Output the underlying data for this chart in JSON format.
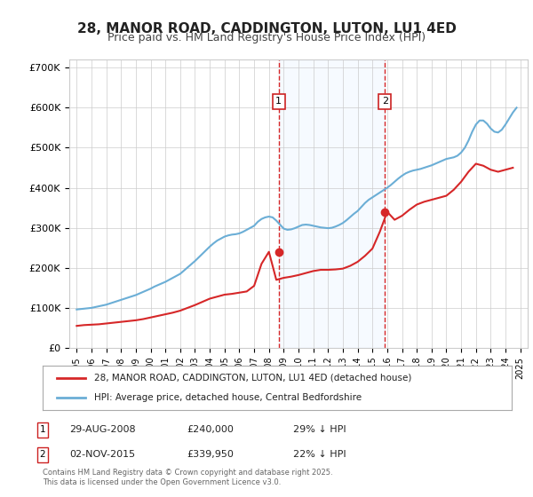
{
  "title": "28, MANOR ROAD, CADDINGTON, LUTON, LU1 4ED",
  "subtitle": "Price paid vs. HM Land Registry's House Price Index (HPI)",
  "background_color": "#ffffff",
  "plot_bg_color": "#ffffff",
  "grid_color": "#cccccc",
  "sale1_date_x": 2008.66,
  "sale1_price": 240000,
  "sale1_label": "1",
  "sale1_info": "29-AUG-2008",
  "sale1_amount": "£240,000",
  "sale1_hpi": "29% ↓ HPI",
  "sale2_date_x": 2015.84,
  "sale2_price": 339950,
  "sale2_label": "2",
  "sale2_info": "02-NOV-2015",
  "sale2_amount": "£339,950",
  "sale2_hpi": "22% ↓ HPI",
  "hpi_color": "#6baed6",
  "price_color": "#d62728",
  "shade_color": "#ddeeff",
  "vline_color": "#d62728",
  "ylim_min": 0,
  "ylim_max": 720000,
  "xlim_min": 1994.5,
  "xlim_max": 2025.5,
  "yticks": [
    0,
    100000,
    200000,
    300000,
    400000,
    500000,
    600000,
    700000
  ],
  "ytick_labels": [
    "£0",
    "£100K",
    "£200K",
    "£300K",
    "£400K",
    "£500K",
    "£600K",
    "£700K"
  ],
  "xticks": [
    1995,
    1996,
    1997,
    1998,
    1999,
    2000,
    2001,
    2002,
    2003,
    2004,
    2005,
    2006,
    2007,
    2008,
    2009,
    2010,
    2011,
    2012,
    2013,
    2014,
    2015,
    2016,
    2017,
    2018,
    2019,
    2020,
    2021,
    2022,
    2023,
    2024,
    2025
  ],
  "legend_label_price": "28, MANOR ROAD, CADDINGTON, LUTON, LU1 4ED (detached house)",
  "legend_label_hpi": "HPI: Average price, detached house, Central Bedfordshire",
  "footnote": "Contains HM Land Registry data © Crown copyright and database right 2025.\nThis data is licensed under the Open Government Licence v3.0.",
  "hpi_years": [
    1995,
    1995.25,
    1995.5,
    1995.75,
    1996,
    1996.25,
    1996.5,
    1996.75,
    1997,
    1997.25,
    1997.5,
    1997.75,
    1998,
    1998.25,
    1998.5,
    1998.75,
    1999,
    1999.25,
    1999.5,
    1999.75,
    2000,
    2000.25,
    2000.5,
    2000.75,
    2001,
    2001.25,
    2001.5,
    2001.75,
    2002,
    2002.25,
    2002.5,
    2002.75,
    2003,
    2003.25,
    2003.5,
    2003.75,
    2004,
    2004.25,
    2004.5,
    2004.75,
    2005,
    2005.25,
    2005.5,
    2005.75,
    2006,
    2006.25,
    2006.5,
    2006.75,
    2007,
    2007.25,
    2007.5,
    2007.75,
    2008,
    2008.25,
    2008.5,
    2008.75,
    2009,
    2009.25,
    2009.5,
    2009.75,
    2010,
    2010.25,
    2010.5,
    2010.75,
    2011,
    2011.25,
    2011.5,
    2011.75,
    2012,
    2012.25,
    2012.5,
    2012.75,
    2013,
    2013.25,
    2013.5,
    2013.75,
    2014,
    2014.25,
    2014.5,
    2014.75,
    2015,
    2015.25,
    2015.5,
    2015.75,
    2016,
    2016.25,
    2016.5,
    2016.75,
    2017,
    2017.25,
    2017.5,
    2017.75,
    2018,
    2018.25,
    2018.5,
    2018.75,
    2019,
    2019.25,
    2019.5,
    2019.75,
    2020,
    2020.25,
    2020.5,
    2020.75,
    2021,
    2021.25,
    2021.5,
    2021.75,
    2022,
    2022.25,
    2022.5,
    2022.75,
    2023,
    2023.25,
    2023.5,
    2023.75,
    2024,
    2024.25,
    2024.5,
    2024.75
  ],
  "hpi_values": [
    96000,
    97000,
    98000,
    99000,
    100000,
    102000,
    104000,
    106000,
    108000,
    111000,
    114000,
    117000,
    120000,
    123000,
    126000,
    129000,
    132000,
    136000,
    140000,
    144000,
    148000,
    153000,
    157000,
    161000,
    165000,
    170000,
    175000,
    180000,
    185000,
    193000,
    201000,
    209000,
    217000,
    226000,
    235000,
    244000,
    253000,
    261000,
    268000,
    273000,
    278000,
    281000,
    283000,
    284000,
    286000,
    290000,
    295000,
    300000,
    305000,
    315000,
    322000,
    326000,
    328000,
    326000,
    318000,
    308000,
    298000,
    295000,
    296000,
    299000,
    303000,
    307000,
    308000,
    307000,
    305000,
    303000,
    301000,
    300000,
    299000,
    300000,
    303000,
    307000,
    312000,
    319000,
    327000,
    335000,
    342000,
    352000,
    362000,
    370000,
    376000,
    382000,
    388000,
    394000,
    400000,
    407000,
    415000,
    423000,
    430000,
    436000,
    440000,
    443000,
    445000,
    447000,
    450000,
    453000,
    456000,
    460000,
    464000,
    468000,
    472000,
    474000,
    476000,
    480000,
    488000,
    500000,
    518000,
    540000,
    558000,
    568000,
    568000,
    560000,
    548000,
    540000,
    538000,
    545000,
    558000,
    573000,
    588000,
    600000
  ],
  "price_years": [
    1995,
    1995.5,
    1996,
    1996.5,
    1997,
    1997.5,
    1998,
    1998.5,
    1999,
    1999.5,
    2000,
    2000.5,
    2001,
    2001.5,
    2002,
    2002.5,
    2003,
    2003.5,
    2004,
    2004.5,
    2005,
    2005.5,
    2006,
    2006.5,
    2007,
    2007.5,
    2008,
    2008.5,
    2009,
    2009.5,
    2010,
    2010.5,
    2011,
    2011.5,
    2012,
    2012.5,
    2013,
    2013.5,
    2014,
    2014.5,
    2015,
    2015.5,
    2016,
    2016.5,
    2017,
    2017.5,
    2018,
    2018.5,
    2019,
    2019.5,
    2020,
    2020.5,
    2021,
    2021.5,
    2022,
    2022.5,
    2023,
    2023.5,
    2024,
    2024.5
  ],
  "price_values": [
    55000,
    57000,
    58000,
    59000,
    61000,
    63000,
    65000,
    67000,
    69000,
    72000,
    76000,
    80000,
    84000,
    88000,
    93000,
    100000,
    107000,
    115000,
    123000,
    128000,
    133000,
    135000,
    138000,
    141000,
    155000,
    210000,
    240000,
    170000,
    175000,
    178000,
    182000,
    187000,
    192000,
    195000,
    195000,
    196000,
    198000,
    205000,
    215000,
    230000,
    248000,
    290000,
    339950,
    320000,
    330000,
    345000,
    358000,
    365000,
    370000,
    375000,
    380000,
    395000,
    415000,
    440000,
    460000,
    455000,
    445000,
    440000,
    445000,
    450000
  ]
}
